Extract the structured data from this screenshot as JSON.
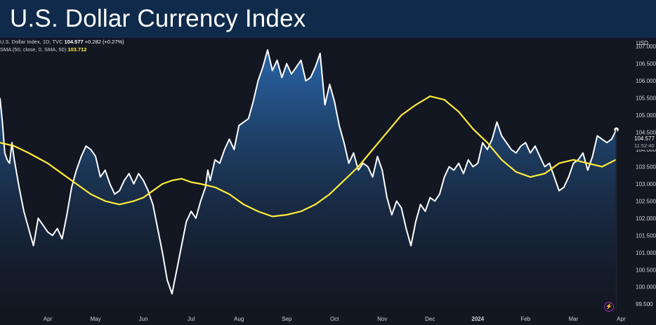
{
  "header": {
    "title": "U.S. Dollar Currency Index"
  },
  "legend": {
    "symbol": "U.S. Dollar Index, 1D, TVC",
    "value": "104.577",
    "change": "+0.282 (+0.27%)",
    "indicator": "SMA (50, close, 0, SMA, 50)",
    "indicator_value": "103.712"
  },
  "axis": {
    "unit": "USD",
    "last_price": "104.577",
    "countdown": "11:52:40"
  },
  "colors": {
    "price_line": "#ffffff",
    "sma_line": "#ffeb3b",
    "area_top": "#2a6ab0",
    "background": "#131722",
    "banner": "#0f2a4a"
  },
  "icons": {
    "alert": "lightning-bolt-icon"
  },
  "chart_data": {
    "type": "area",
    "title": "U.S. Dollar Currency Index",
    "ylim": [
      99.3,
      107.25
    ],
    "y_ticks": [
      99.5,
      100.0,
      100.5,
      101.0,
      101.5,
      102.0,
      102.5,
      103.0,
      103.5,
      104.0,
      104.5,
      105.0,
      105.5,
      106.0,
      106.5,
      107.0
    ],
    "y_tick_labels": [
      "99.500",
      "100.000",
      "100.500",
      "101.000",
      "101.500",
      "102.000",
      "102.500",
      "103.000",
      "103.500",
      "104.000",
      "104.500",
      "105.000",
      "105.500",
      "106.000",
      "106.500",
      "107.000"
    ],
    "x_tick_labels": [
      "Apr",
      "May",
      "Jun",
      "Jul",
      "Aug",
      "Sep",
      "Oct",
      "Nov",
      "Dec",
      "2024",
      "Feb",
      "Mar",
      "Apr"
    ],
    "x_ticks_month": [
      1,
      2,
      3,
      4,
      5,
      6,
      7,
      8,
      9,
      10,
      11,
      12,
      13
    ],
    "grid": false,
    "series": [
      {
        "x": [
          0.0,
          0.05,
          0.1,
          0.15,
          0.2,
          0.25,
          0.3,
          0.4,
          0.5,
          0.6,
          0.7,
          0.8,
          0.9,
          1.0,
          1.1,
          1.2,
          1.3,
          1.4,
          1.5,
          1.6,
          1.7,
          1.8,
          1.9,
          2.0,
          2.1,
          2.2,
          2.3,
          2.4,
          2.5,
          2.6,
          2.7,
          2.8,
          2.9,
          3.0,
          3.1,
          3.2,
          3.3,
          3.4,
          3.5,
          3.6,
          3.7,
          3.8,
          3.9,
          4.0,
          4.1,
          4.2,
          4.3,
          4.35,
          4.4,
          4.5,
          4.6,
          4.7,
          4.8,
          4.9,
          5.0,
          5.1,
          5.2,
          5.3,
          5.4,
          5.5,
          5.6,
          5.7,
          5.8,
          5.9,
          6.0,
          6.1,
          6.2,
          6.3,
          6.4,
          6.5,
          6.6,
          6.7,
          6.8,
          6.9,
          7.0,
          7.1,
          7.2,
          7.3,
          7.4,
          7.5,
          7.6,
          7.7,
          7.8,
          7.9,
          8.0,
          8.1,
          8.2,
          8.3,
          8.4,
          8.5,
          8.6,
          8.7,
          8.8,
          8.9,
          9.0,
          9.1,
          9.2,
          9.3,
          9.4,
          9.5,
          9.6,
          9.7,
          9.8,
          9.9,
          10.0,
          10.1,
          10.2,
          10.3,
          10.4,
          10.5,
          10.6,
          10.7,
          10.8,
          10.9,
          11.0,
          11.1,
          11.2,
          11.3,
          11.4,
          11.5,
          11.6,
          11.7,
          11.8,
          11.9,
          12.0,
          12.1,
          12.2,
          12.3,
          12.4,
          12.5,
          12.6,
          12.7,
          12.8,
          12.9
        ],
        "values": [
          105.5,
          104.8,
          103.9,
          103.7,
          103.6,
          104.2,
          103.7,
          102.9,
          102.2,
          101.7,
          101.2,
          102.0,
          101.8,
          101.6,
          101.5,
          101.7,
          101.4,
          102.1,
          102.9,
          103.4,
          103.8,
          104.1,
          104.0,
          103.8,
          103.2,
          103.4,
          103.0,
          102.7,
          102.8,
          103.1,
          103.3,
          103.0,
          103.3,
          103.1,
          102.8,
          102.4,
          101.7,
          101.0,
          100.2,
          99.8,
          100.5,
          101.2,
          101.9,
          102.2,
          102.0,
          102.5,
          102.9,
          103.4,
          103.1,
          103.7,
          103.6,
          104.0,
          104.3,
          104.0,
          104.7,
          104.8,
          104.9,
          105.4,
          106.0,
          106.4,
          106.9,
          106.3,
          106.6,
          106.1,
          106.5,
          106.2,
          106.4,
          106.6,
          106.0,
          106.1,
          106.4,
          106.8,
          105.3,
          105.9,
          105.4,
          104.7,
          104.2,
          103.6,
          103.9,
          103.4,
          103.6,
          103.5,
          103.2,
          103.8,
          103.4,
          102.6,
          102.1,
          102.5,
          102.3,
          101.7,
          101.2,
          101.9,
          102.4,
          102.2,
          102.6,
          102.5,
          102.7,
          103.2,
          103.5,
          103.4,
          103.6,
          103.3,
          103.7,
          103.5,
          103.6,
          104.2,
          104.0,
          104.3,
          104.8,
          104.4,
          104.2,
          104.0,
          103.9,
          104.1,
          104.2,
          103.9,
          104.1,
          103.8,
          103.5,
          103.6,
          103.2,
          102.8,
          102.9,
          103.2,
          103.6,
          103.7,
          103.9,
          103.4,
          103.8,
          104.4,
          104.3,
          104.2,
          104.3,
          104.58
        ]
      },
      {
        "x": [
          0.0,
          0.3,
          0.6,
          1.0,
          1.3,
          1.6,
          1.9,
          2.2,
          2.5,
          2.8,
          3.0,
          3.2,
          3.4,
          3.6,
          3.8,
          4.0,
          4.2,
          4.5,
          4.8,
          5.1,
          5.4,
          5.7,
          6.0,
          6.3,
          6.6,
          6.9,
          7.2,
          7.5,
          7.8,
          8.1,
          8.4,
          8.7,
          9.0,
          9.3,
          9.6,
          9.9,
          10.2,
          10.5,
          10.8,
          11.1,
          11.4,
          11.7,
          12.0,
          12.3,
          12.6,
          12.9
        ],
        "values": [
          104.2,
          104.1,
          103.9,
          103.6,
          103.3,
          103.0,
          102.7,
          102.5,
          102.4,
          102.5,
          102.6,
          102.8,
          103.0,
          103.1,
          103.15,
          103.05,
          103.0,
          102.9,
          102.7,
          102.4,
          102.2,
          102.05,
          102.1,
          102.2,
          102.4,
          102.7,
          103.1,
          103.5,
          104.0,
          104.5,
          105.0,
          105.3,
          105.55,
          105.45,
          105.1,
          104.6,
          104.2,
          103.7,
          103.35,
          103.2,
          103.3,
          103.6,
          103.7,
          103.6,
          103.5,
          103.71
        ]
      }
    ]
  }
}
